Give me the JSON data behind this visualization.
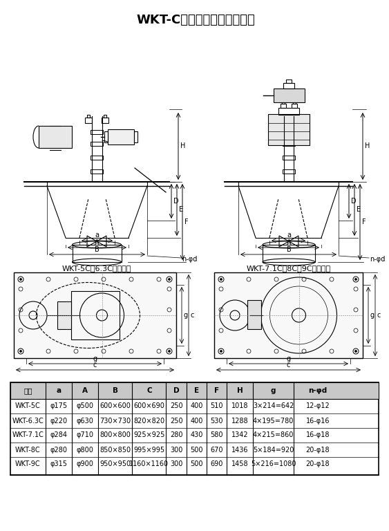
{
  "title": "WKT-C型热循环风机外形尺寸",
  "subtitle_left": "WKT-5C、6.3C外形尺寸",
  "subtitle_right": "WKT-7.1C、8C、9C外形尺寸",
  "table_headers": [
    "型号",
    "a",
    "A",
    "B",
    "C",
    "D",
    "E",
    "F",
    "H",
    "g",
    "n-φd"
  ],
  "table_data": [
    [
      "WKT-5C",
      "φ175",
      "φ500",
      "600×600",
      "600×690",
      "250",
      "400",
      "510",
      "1018",
      "3×214=642",
      "12-φ12"
    ],
    [
      "WKT-6.3C",
      "φ220",
      "φ630",
      "730×730",
      "820×820",
      "250",
      "400",
      "530",
      "1288",
      "4×195=780",
      "16-φ16"
    ],
    [
      "WKT-7.1C",
      "φ284",
      "φ710",
      "800×800",
      "925×925",
      "280",
      "430",
      "580",
      "1342",
      "4×215=860",
      "16-φ18"
    ],
    [
      "WKT-8C",
      "φ280",
      "φ800",
      "850×850",
      "995×995",
      "300",
      "500",
      "670",
      "1436",
      "5×184=920",
      "20-φ18"
    ],
    [
      "WKT-9C",
      "φ315",
      "φ900",
      "950×950",
      "1160×1160",
      "300",
      "500",
      "690",
      "1458",
      "5×216=1080",
      "20-φ18"
    ]
  ],
  "bg_color": "#ffffff",
  "line_color": "#000000",
  "table_header_bg": "#d0d0d0"
}
